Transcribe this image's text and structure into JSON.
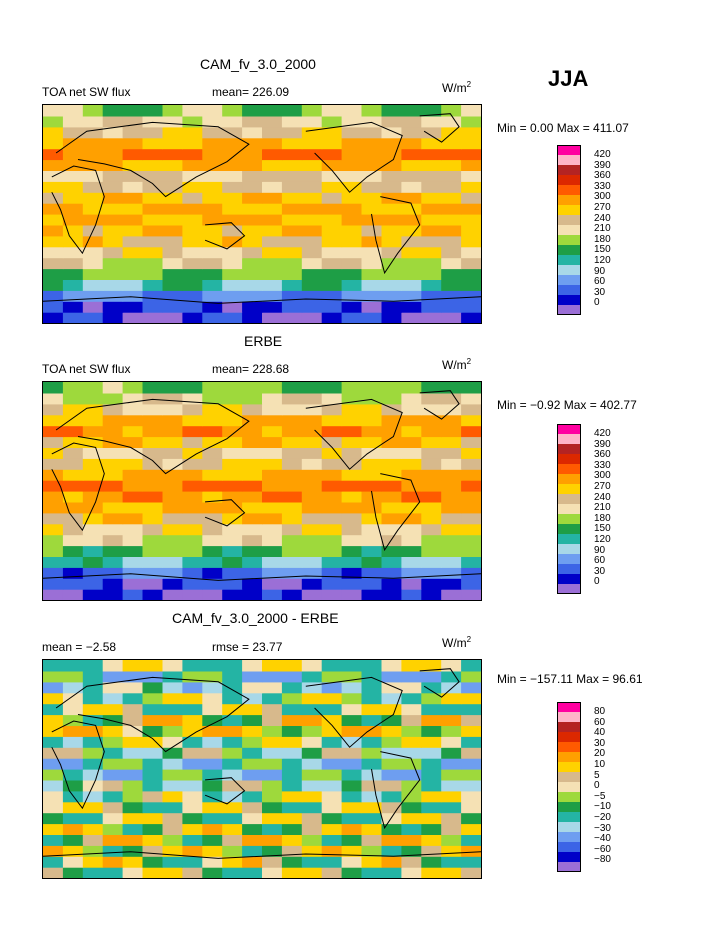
{
  "season": "JJA",
  "colors": {
    "level_colors": [
      "#9b6fd6",
      "#0000c8",
      "#3c64e6",
      "#6e9ef0",
      "#a8d8e8",
      "#24b4a4",
      "#1e9e46",
      "#9ed93c",
      "#f5e1b4",
      "#d7b98c",
      "#ffd200",
      "#ffa000",
      "#ff5a00",
      "#dc2800",
      "#b42323",
      "#ffb4c8",
      "#ff00a0"
    ]
  },
  "panels": [
    {
      "title": "CAM_fv_3.0_2000",
      "left_label": "TOA net SW flux",
      "mean_label": "mean= 226.09",
      "units": "W/m",
      "units_sup": "2",
      "minmax": "Min =    0.00 Max = 411.07",
      "ticks": [
        "420",
        "390",
        "360",
        "330",
        "300",
        "270",
        "240",
        "210",
        "180",
        "150",
        "120",
        "90",
        "60",
        "30",
        "0"
      ]
    },
    {
      "title": "ERBE",
      "left_label": "TOA net SW flux",
      "mean_label": "mean= 228.68",
      "units": "W/m",
      "units_sup": "2",
      "minmax": "Min =  −0.92 Max = 402.77",
      "ticks": [
        "420",
        "390",
        "360",
        "330",
        "300",
        "270",
        "240",
        "210",
        "180",
        "150",
        "120",
        "90",
        "60",
        "30",
        "0"
      ]
    },
    {
      "title": "CAM_fv_3.0_2000 - ERBE",
      "left_label": "mean =   −2.58",
      "mean_label": "rmse =   23.77",
      "units": "W/m",
      "units_sup": "2",
      "minmax": "Min = −157.11 Max =  96.61",
      "ticks": [
        "80",
        "60",
        "40",
        "30",
        "20",
        "10",
        "5",
        "0",
        "−5",
        "−10",
        "−20",
        "−30",
        "−40",
        "−60",
        "−80"
      ]
    }
  ],
  "chart_data": [
    {
      "type": "heatmap",
      "title": "CAM_fv_3.0_2000",
      "variable": "TOA net SW flux",
      "units": "W/m2",
      "mean": 226.09,
      "min": 0.0,
      "max": 411.07,
      "contour_levels": [
        0,
        30,
        60,
        90,
        120,
        150,
        180,
        210,
        240,
        270,
        300,
        330,
        360,
        390,
        420
      ],
      "projection": "global lat-lon (cylindrical equidistant)",
      "zonal_profile_south_to_north": [
        10,
        25,
        60,
        130,
        180,
        220,
        250,
        275,
        290,
        300,
        300,
        290,
        260,
        240,
        300,
        330,
        300,
        260,
        230,
        190
      ]
    },
    {
      "type": "heatmap",
      "title": "ERBE",
      "variable": "TOA net SW flux",
      "units": "W/m2",
      "mean": 228.68,
      "min": -0.92,
      "max": 402.77,
      "contour_levels": [
        0,
        30,
        60,
        90,
        120,
        150,
        180,
        210,
        240,
        270,
        300,
        330,
        360,
        390,
        420
      ],
      "projection": "global lat-lon (cylindrical equidistant)",
      "zonal_profile_south_to_north": [
        5,
        20,
        55,
        125,
        175,
        215,
        250,
        280,
        300,
        320,
        330,
        300,
        265,
        245,
        290,
        320,
        300,
        255,
        225,
        185
      ]
    },
    {
      "type": "heatmap",
      "title": "CAM_fv_3.0_2000 - ERBE",
      "units": "W/m2",
      "mean": -2.58,
      "rmse": 23.77,
      "min": -157.11,
      "max": 96.61,
      "contour_levels": [
        -80,
        -60,
        -40,
        -30,
        -20,
        -10,
        -5,
        0,
        5,
        10,
        20,
        30,
        40,
        60,
        80
      ],
      "projection": "global lat-lon (cylindrical equidistant)",
      "zonal_profile_south_to_north": [
        2,
        3,
        5,
        6,
        4,
        2,
        0,
        -5,
        -10,
        -20,
        -20,
        -10,
        -5,
        10,
        5,
        0,
        -5,
        -15,
        -20,
        0
      ]
    }
  ]
}
